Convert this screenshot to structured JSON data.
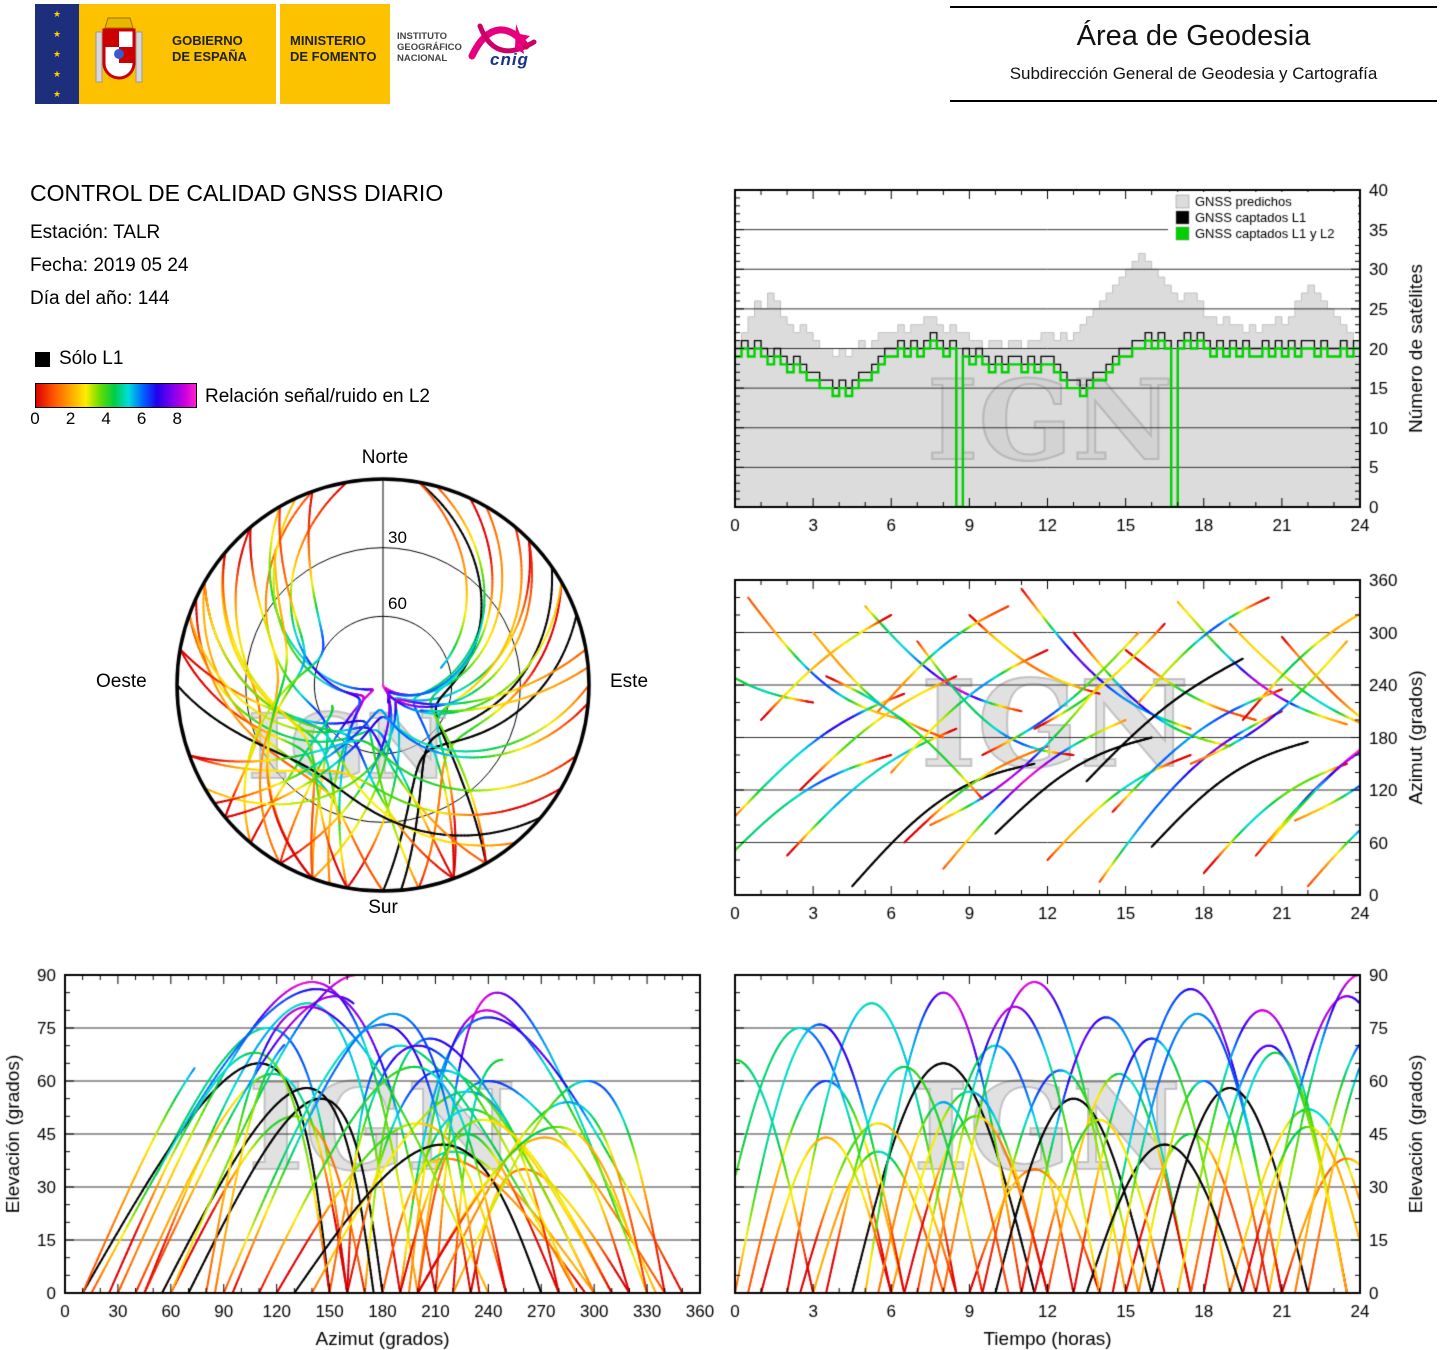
{
  "header": {
    "gov": {
      "line1": "GOBIERNO",
      "line2": "DE ESPAÑA"
    },
    "ministry": {
      "line1": "MINISTERIO",
      "line2": "DE FOMENTO"
    },
    "ign": {
      "line1": "INSTITUTO",
      "line2": "GEOGRÁFICO",
      "line3": "NACIONAL"
    },
    "cnig": "cnig",
    "area_title": "Área de Geodesia",
    "area_subtitle": "Subdirección General de Geodesia y Cartografía"
  },
  "info": {
    "title": "CONTROL DE CALIDAD GNSS DIARIO",
    "station": "Estación: TALR",
    "date": "Fecha: 2019 05 24",
    "doy": "Día del año: 144"
  },
  "legend": {
    "solo_l1": "Sólo L1",
    "colorbar_label": "Relación señal/ruido en L2",
    "colorbar_ticks": [
      0,
      2,
      4,
      6,
      8
    ],
    "colorbar_range": [
      0,
      9
    ],
    "colormap": [
      [
        0,
        "#dd0000"
      ],
      [
        1,
        "#ff5500"
      ],
      [
        2,
        "#ffaa00"
      ],
      [
        2.8,
        "#ffee00"
      ],
      [
        3.6,
        "#66dd00"
      ],
      [
        4.4,
        "#00cc44"
      ],
      [
        5.2,
        "#00dddd"
      ],
      [
        6,
        "#0066ff"
      ],
      [
        6.8,
        "#2200ee"
      ],
      [
        7.6,
        "#7700ee"
      ],
      [
        8.4,
        "#cc00dd"
      ],
      [
        9,
        "#ff22cc"
      ]
    ]
  },
  "watermark": "IGN",
  "chart_data": [
    {
      "id": "sats",
      "type": "area+step",
      "xlabel": "",
      "ylabel": "Número de satélites",
      "xlim": [
        0,
        24
      ],
      "ylim": [
        0,
        40
      ],
      "xticks": [
        0,
        3,
        6,
        9,
        12,
        15,
        18,
        21,
        24
      ],
      "yticks": [
        0,
        5,
        10,
        15,
        20,
        25,
        30,
        35,
        40
      ],
      "t_step": 0.25,
      "legend": [
        {
          "label": "GNSS predichos",
          "color": "#dcdcdc"
        },
        {
          "label": "GNSS captados L1",
          "color": "#000000"
        },
        {
          "label": "GNSS captados L1 y L2",
          "color": "#00d000"
        }
      ],
      "series": {
        "predicted": [
          21,
          22,
          24,
          26,
          25,
          27,
          26,
          24,
          23,
          22,
          23,
          22,
          21,
          20,
          20,
          19,
          20,
          19,
          20,
          21,
          20,
          21,
          22,
          22,
          22,
          23,
          22,
          23,
          23,
          24,
          24,
          23,
          22,
          23,
          22,
          22,
          21,
          21,
          20,
          21,
          21,
          20,
          21,
          21,
          20,
          21,
          21,
          22,
          22,
          21,
          22,
          21,
          22,
          23,
          24,
          25,
          26,
          27,
          28,
          29,
          30,
          31,
          32,
          31,
          30,
          29,
          28,
          27,
          26,
          27,
          27,
          26,
          24,
          24,
          23,
          24,
          23,
          23,
          22,
          23,
          22,
          23,
          23,
          24,
          23,
          24,
          26,
          27,
          28,
          27,
          26,
          25,
          24,
          23,
          22,
          21
        ],
        "captured_l1": [
          20,
          21,
          20,
          21,
          20,
          19,
          20,
          19,
          18,
          19,
          18,
          17,
          17,
          16,
          16,
          15,
          16,
          15,
          16,
          17,
          17,
          18,
          19,
          20,
          20,
          21,
          20,
          21,
          20,
          21,
          22,
          21,
          20,
          21,
          0,
          20,
          19,
          20,
          19,
          18,
          19,
          18,
          19,
          19,
          18,
          19,
          18,
          19,
          19,
          18,
          17,
          16,
          16,
          15,
          16,
          17,
          17,
          18,
          19,
          20,
          20,
          21,
          21,
          22,
          21,
          22,
          21,
          0,
          21,
          22,
          21,
          22,
          21,
          20,
          21,
          20,
          21,
          20,
          21,
          20,
          20,
          21,
          20,
          21,
          20,
          21,
          20,
          21,
          21,
          20,
          21,
          20,
          20,
          21,
          20,
          21
        ],
        "captured_l1_l2": [
          19,
          20,
          19,
          20,
          19,
          18,
          19,
          18,
          17,
          18,
          17,
          16,
          16,
          15,
          15,
          14,
          15,
          14,
          15,
          16,
          16,
          17,
          18,
          19,
          19,
          20,
          19,
          20,
          19,
          20,
          21,
          20,
          19,
          20,
          0,
          19,
          18,
          19,
          18,
          17,
          18,
          17,
          18,
          18,
          17,
          18,
          17,
          18,
          18,
          17,
          16,
          15,
          15,
          14,
          15,
          16,
          16,
          17,
          18,
          19,
          19,
          20,
          20,
          21,
          20,
          21,
          20,
          0,
          20,
          21,
          20,
          21,
          20,
          19,
          20,
          19,
          20,
          19,
          20,
          19,
          19,
          20,
          19,
          20,
          19,
          20,
          19,
          20,
          20,
          19,
          20,
          19,
          19,
          20,
          19,
          20
        ]
      }
    },
    {
      "id": "az",
      "type": "line",
      "xlabel": "",
      "ylabel": "Azimut (grados)",
      "xlim": [
        0,
        24
      ],
      "ylim": [
        0,
        360
      ],
      "xticks": [
        0,
        3,
        6,
        9,
        12,
        15,
        18,
        21,
        24
      ],
      "yticks": [
        0,
        60,
        120,
        180,
        240,
        300,
        360
      ],
      "series_source": "satellites.passes"
    },
    {
      "id": "elaz",
      "type": "line",
      "xlabel": "Azimut (grados)",
      "ylabel": "Elevación (grados)",
      "xlim": [
        0,
        360
      ],
      "ylim": [
        0,
        90
      ],
      "xticks": [
        0,
        30,
        60,
        90,
        120,
        150,
        180,
        210,
        240,
        270,
        300,
        330,
        360
      ],
      "yticks": [
        0,
        15,
        30,
        45,
        60,
        75,
        90
      ],
      "series_source": "satellites.passes"
    },
    {
      "id": "elt",
      "type": "line",
      "xlabel": "Tiempo (horas)",
      "ylabel": "Elevación (grados)",
      "xlim": [
        0,
        24
      ],
      "ylim": [
        0,
        90
      ],
      "xticks": [
        0,
        3,
        6,
        9,
        12,
        15,
        18,
        21,
        24
      ],
      "yticks": [
        0,
        15,
        30,
        45,
        60,
        75,
        90
      ],
      "series_source": "satellites.passes"
    },
    {
      "id": "sky",
      "type": "polar-skyplot",
      "labels": {
        "north": "Norte",
        "south": "Sur",
        "east": "Este",
        "west": "Oeste"
      },
      "rings": [
        30,
        60
      ],
      "series_source": "satellites.passes"
    }
  ],
  "satellites": {
    "fields": [
      "t_rise_h",
      "duration_h",
      "az_rise_deg",
      "az_set_deg",
      "el_max_deg",
      "az_bend_deg",
      "snr_bias",
      "solo_l1"
    ],
    "passes": [
      [
        -1,
        7,
        20,
        160,
        75,
        25,
        0,
        0
      ],
      [
        0.5,
        6,
        340,
        200,
        60,
        -30,
        0.5,
        0
      ],
      [
        2,
        6.5,
        45,
        190,
        82,
        20,
        -0.5,
        0
      ],
      [
        3,
        5,
        300,
        180,
        40,
        -20,
        0.8,
        0
      ],
      [
        4.5,
        7,
        10,
        150,
        65,
        30,
        0,
        1
      ],
      [
        5,
        6,
        330,
        210,
        85,
        -25,
        1,
        0
      ],
      [
        6.5,
        5.5,
        60,
        170,
        50,
        15,
        -0.8,
        0
      ],
      [
        7,
        6,
        290,
        160,
        70,
        -35,
        0.3,
        0
      ],
      [
        8,
        7,
        30,
        200,
        88,
        25,
        0.6,
        0
      ],
      [
        9,
        5,
        320,
        230,
        35,
        -15,
        -0.4,
        0
      ],
      [
        10,
        6,
        70,
        180,
        55,
        20,
        0,
        1
      ],
      [
        11,
        6.5,
        350,
        190,
        78,
        -30,
        0.9,
        0
      ],
      [
        12,
        5.5,
        40,
        160,
        62,
        18,
        -0.6,
        0
      ],
      [
        13,
        6,
        300,
        170,
        72,
        -28,
        0.4,
        0
      ],
      [
        14,
        7,
        15,
        210,
        86,
        30,
        0.7,
        0
      ],
      [
        15,
        5,
        280,
        200,
        45,
        -12,
        -0.3,
        0
      ],
      [
        16,
        6,
        55,
        175,
        58,
        22,
        0,
        1
      ],
      [
        17,
        6.5,
        335,
        195,
        80,
        -26,
        1,
        0
      ],
      [
        18,
        5.5,
        25,
        150,
        68,
        20,
        -0.5,
        0
      ],
      [
        19,
        6,
        310,
        185,
        52,
        -18,
        0.2,
        0
      ],
      [
        20,
        7,
        45,
        205,
        84,
        28,
        0.8,
        0
      ],
      [
        21,
        5,
        295,
        165,
        38,
        -14,
        -0.7,
        0
      ],
      [
        22,
        6,
        10,
        140,
        74,
        24,
        0.5,
        0
      ],
      [
        -3,
        6,
        320,
        220,
        66,
        -22,
        0,
        0
      ],
      [
        20.5,
        7,
        60,
        220,
        90,
        26,
        0.9,
        0
      ],
      [
        2.5,
        6,
        120,
        250,
        48,
        15,
        -0.4,
        0
      ],
      [
        6,
        6,
        140,
        280,
        57,
        18,
        0.3,
        0
      ],
      [
        9.5,
        6,
        160,
        300,
        63,
        -16,
        0.6,
        0
      ],
      [
        13.5,
        6,
        130,
        270,
        42,
        14,
        0,
        1
      ],
      [
        17.5,
        6,
        150,
        290,
        70,
        -20,
        0.7,
        0
      ],
      [
        1,
        5,
        200,
        320,
        44,
        12,
        -0.5,
        0
      ],
      [
        5.5,
        5,
        210,
        330,
        54,
        15,
        0.2,
        0
      ],
      [
        11.5,
        5,
        190,
        310,
        49,
        -13,
        -0.2,
        0
      ],
      [
        15.5,
        5,
        220,
        340,
        60,
        16,
        0.5,
        0
      ],
      [
        19.5,
        5,
        200,
        330,
        47,
        14,
        -0.1,
        0
      ],
      [
        0,
        6.5,
        90,
        230,
        76,
        20,
        0.6,
        0
      ],
      [
        7.5,
        6.5,
        80,
        240,
        81,
        -22,
        0.8,
        0
      ],
      [
        14.5,
        6.5,
        95,
        235,
        79,
        21,
        0.4,
        0
      ],
      [
        21.5,
        6,
        85,
        225,
        73,
        -19,
        0.3,
        0
      ],
      [
        3.5,
        6,
        250,
        110,
        64,
        18,
        0.1,
        0
      ]
    ]
  }
}
